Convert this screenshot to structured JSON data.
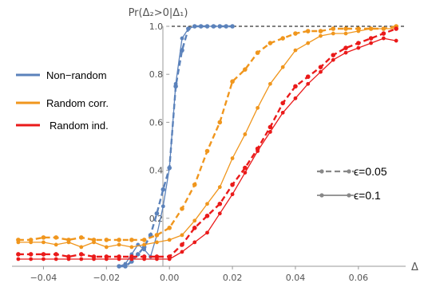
{
  "chart_data": {
    "type": "line",
    "title": "",
    "ylabel": "Pr(Δ₂>0|Δ₁)",
    "xlabel": "Δ",
    "xlim": [
      -0.05,
      0.075
    ],
    "ylim": [
      0,
      1.0
    ],
    "x_ticks": [
      -0.04,
      -0.02,
      0.0,
      0.02,
      0.04,
      0.06
    ],
    "x_tick_labels": [
      "−0.04",
      "−0.02",
      "0.00",
      "0.02",
      "0.04",
      "0.06"
    ],
    "y_ticks": [
      0.2,
      0.4,
      0.6,
      0.8,
      1.0
    ],
    "y_tick_labels": [
      "0.2",
      "0.4",
      "0.6",
      "0.8",
      "1.0"
    ],
    "reference_line": {
      "y": 1.0,
      "style": "dashed",
      "color": "#000000"
    },
    "legend": {
      "position": "left",
      "entries": [
        {
          "label": "Non−random",
          "color": "#5b82bb"
        },
        {
          "label": "Random corr.",
          "color": "#f0961d"
        },
        {
          "label": "Random ind.",
          "color": "#ea1a1a"
        }
      ]
    },
    "style_legend": {
      "position": "right",
      "entries": [
        {
          "label": "ϵ=0.05",
          "dash": "dashed"
        },
        {
          "label": "ϵ=0.1",
          "dash": "solid"
        }
      ]
    },
    "series": [
      {
        "group": "Non−random",
        "eps": "ϵ=0.05",
        "color": "#5b82bb",
        "dash": "dashed",
        "x": [
          -0.016,
          -0.014,
          -0.012,
          -0.01,
          -0.008,
          -0.006,
          -0.004,
          -0.002,
          0.0,
          0.002,
          0.004,
          0.006,
          0.008,
          0.01,
          0.012,
          0.014,
          0.016,
          0.018,
          0.02
        ],
        "y": [
          0.0,
          0.0,
          0.02,
          0.05,
          0.08,
          0.13,
          0.22,
          0.32,
          0.41,
          0.75,
          0.9,
          0.99,
          1.0,
          1.0,
          1.0,
          1.0,
          1.0,
          1.0,
          1.0
        ]
      },
      {
        "group": "Non−random",
        "eps": "ϵ=0.1",
        "color": "#5b82bb",
        "dash": "solid",
        "x": [
          -0.016,
          -0.014,
          -0.012,
          -0.01,
          -0.008,
          -0.006,
          -0.004,
          -0.002,
          0.0,
          0.002,
          0.004,
          0.006,
          0.008,
          0.01,
          0.012,
          0.014,
          0.016,
          0.018,
          0.02
        ],
        "y": [
          0.0,
          0.01,
          0.05,
          0.09,
          0.07,
          0.04,
          0.13,
          0.25,
          0.41,
          0.76,
          0.95,
          0.99,
          1.0,
          1.0,
          1.0,
          1.0,
          1.0,
          1.0,
          1.0
        ]
      },
      {
        "group": "Random corr.",
        "eps": "ϵ=0.05",
        "color": "#f0961d",
        "dash": "dashed",
        "x": [
          -0.048,
          -0.044,
          -0.04,
          -0.036,
          -0.032,
          -0.028,
          -0.024,
          -0.02,
          -0.016,
          -0.012,
          -0.008,
          -0.004,
          0.0,
          0.004,
          0.008,
          0.012,
          0.016,
          0.02,
          0.024,
          0.028,
          0.032,
          0.036,
          0.04,
          0.044,
          0.048,
          0.052,
          0.056,
          0.06,
          0.064,
          0.068,
          0.072
        ],
        "y": [
          0.11,
          0.11,
          0.12,
          0.12,
          0.11,
          0.12,
          0.11,
          0.11,
          0.11,
          0.11,
          0.11,
          0.13,
          0.16,
          0.24,
          0.34,
          0.48,
          0.6,
          0.77,
          0.82,
          0.89,
          0.93,
          0.95,
          0.97,
          0.98,
          0.98,
          0.99,
          0.99,
          0.99,
          0.99,
          0.99,
          1.0
        ]
      },
      {
        "group": "Random corr.",
        "eps": "ϵ=0.1",
        "color": "#f0961d",
        "dash": "solid",
        "x": [
          -0.048,
          -0.044,
          -0.04,
          -0.036,
          -0.032,
          -0.028,
          -0.024,
          -0.02,
          -0.016,
          -0.012,
          -0.008,
          -0.004,
          0.0,
          0.004,
          0.008,
          0.012,
          0.016,
          0.02,
          0.024,
          0.028,
          0.032,
          0.036,
          0.04,
          0.044,
          0.048,
          0.052,
          0.056,
          0.06,
          0.064,
          0.068,
          0.072
        ],
        "y": [
          0.1,
          0.1,
          0.1,
          0.09,
          0.1,
          0.08,
          0.1,
          0.08,
          0.09,
          0.08,
          0.09,
          0.1,
          0.11,
          0.13,
          0.19,
          0.26,
          0.33,
          0.45,
          0.55,
          0.66,
          0.76,
          0.83,
          0.9,
          0.93,
          0.96,
          0.97,
          0.97,
          0.98,
          0.99,
          0.99,
          0.99
        ]
      },
      {
        "group": "Random ind.",
        "eps": "ϵ=0.05",
        "color": "#ea1a1a",
        "dash": "dashed",
        "x": [
          -0.048,
          -0.044,
          -0.04,
          -0.036,
          -0.032,
          -0.028,
          -0.024,
          -0.02,
          -0.016,
          -0.012,
          -0.008,
          -0.004,
          0.0,
          0.004,
          0.008,
          0.012,
          0.016,
          0.02,
          0.024,
          0.028,
          0.032,
          0.036,
          0.04,
          0.044,
          0.048,
          0.052,
          0.056,
          0.06,
          0.064,
          0.068,
          0.072
        ],
        "y": [
          0.05,
          0.05,
          0.05,
          0.05,
          0.04,
          0.05,
          0.04,
          0.04,
          0.04,
          0.04,
          0.04,
          0.04,
          0.04,
          0.09,
          0.16,
          0.21,
          0.26,
          0.34,
          0.41,
          0.49,
          0.58,
          0.68,
          0.75,
          0.79,
          0.83,
          0.88,
          0.91,
          0.93,
          0.95,
          0.97,
          0.99
        ]
      },
      {
        "group": "Random ind.",
        "eps": "ϵ=0.1",
        "color": "#ea1a1a",
        "dash": "solid",
        "x": [
          -0.048,
          -0.044,
          -0.04,
          -0.036,
          -0.032,
          -0.028,
          -0.024,
          -0.02,
          -0.016,
          -0.012,
          -0.008,
          -0.004,
          0.0,
          0.004,
          0.008,
          0.012,
          0.016,
          0.02,
          0.024,
          0.028,
          0.032,
          0.036,
          0.04,
          0.044,
          0.048,
          0.052,
          0.056,
          0.06,
          0.064,
          0.068,
          0.072
        ],
        "y": [
          0.03,
          0.03,
          0.03,
          0.03,
          0.03,
          0.03,
          0.03,
          0.03,
          0.03,
          0.03,
          0.03,
          0.03,
          0.03,
          0.06,
          0.1,
          0.14,
          0.22,
          0.3,
          0.39,
          0.48,
          0.56,
          0.64,
          0.7,
          0.76,
          0.81,
          0.86,
          0.89,
          0.91,
          0.93,
          0.95,
          0.94
        ]
      }
    ]
  }
}
